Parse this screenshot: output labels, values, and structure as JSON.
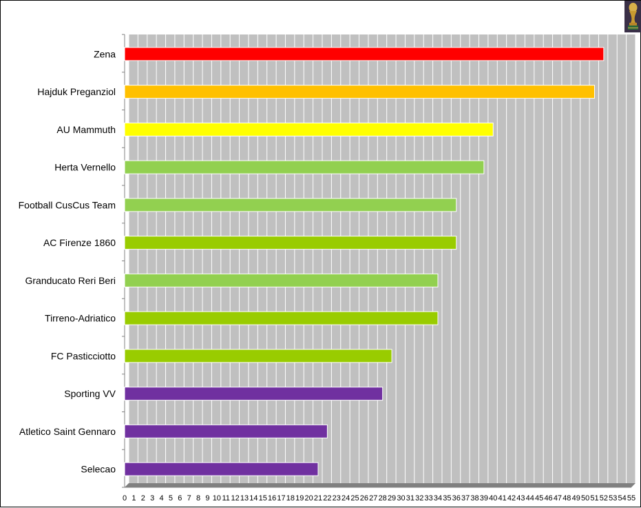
{
  "chart_data": {
    "type": "bar",
    "orientation": "horizontal",
    "title": "",
    "xlabel": "",
    "ylabel": "",
    "xlim": [
      0,
      55
    ],
    "grid": true,
    "background": "#c0c0c0",
    "x_ticks": [
      "0",
      "1",
      "2",
      "3",
      "4",
      "5",
      "6",
      "7",
      "8",
      "9",
      "10",
      "11",
      "12",
      "13",
      "14",
      "15",
      "16",
      "17",
      "18",
      "19",
      "20",
      "21",
      "22",
      "23",
      "24",
      "25",
      "26",
      "27",
      "28",
      "29",
      "30",
      "31",
      "32",
      "33",
      "34",
      "35",
      "36",
      "37",
      "38",
      "39",
      "40",
      "41",
      "42",
      "43",
      "44",
      "45",
      "46",
      "47",
      "48",
      "49",
      "50",
      "51",
      "52",
      "53",
      "54",
      "55"
    ],
    "categories": [
      "Zena",
      "Hajduk Preganziol",
      "AU Mammuth",
      "Herta Vernello",
      "Football CusCus Team",
      "AC Firenze 1860",
      "Granducato Reri Beri",
      "Tirreno-Adriatico",
      "FC Pasticciotto",
      "Sporting VV",
      "Atletico Saint Gennaro",
      "Selecao"
    ],
    "values": [
      52,
      51,
      40,
      39,
      36,
      36,
      34,
      34,
      29,
      28,
      22,
      21
    ],
    "colors": [
      "#ff0000",
      "#ffc000",
      "#ffff00",
      "#92d050",
      "#92d050",
      "#99cc00",
      "#92d050",
      "#99cc00",
      "#99cc00",
      "#7030a0",
      "#7030a0",
      "#7030a0"
    ]
  },
  "logo": {
    "icon": "world-cup-trophy-icon"
  }
}
